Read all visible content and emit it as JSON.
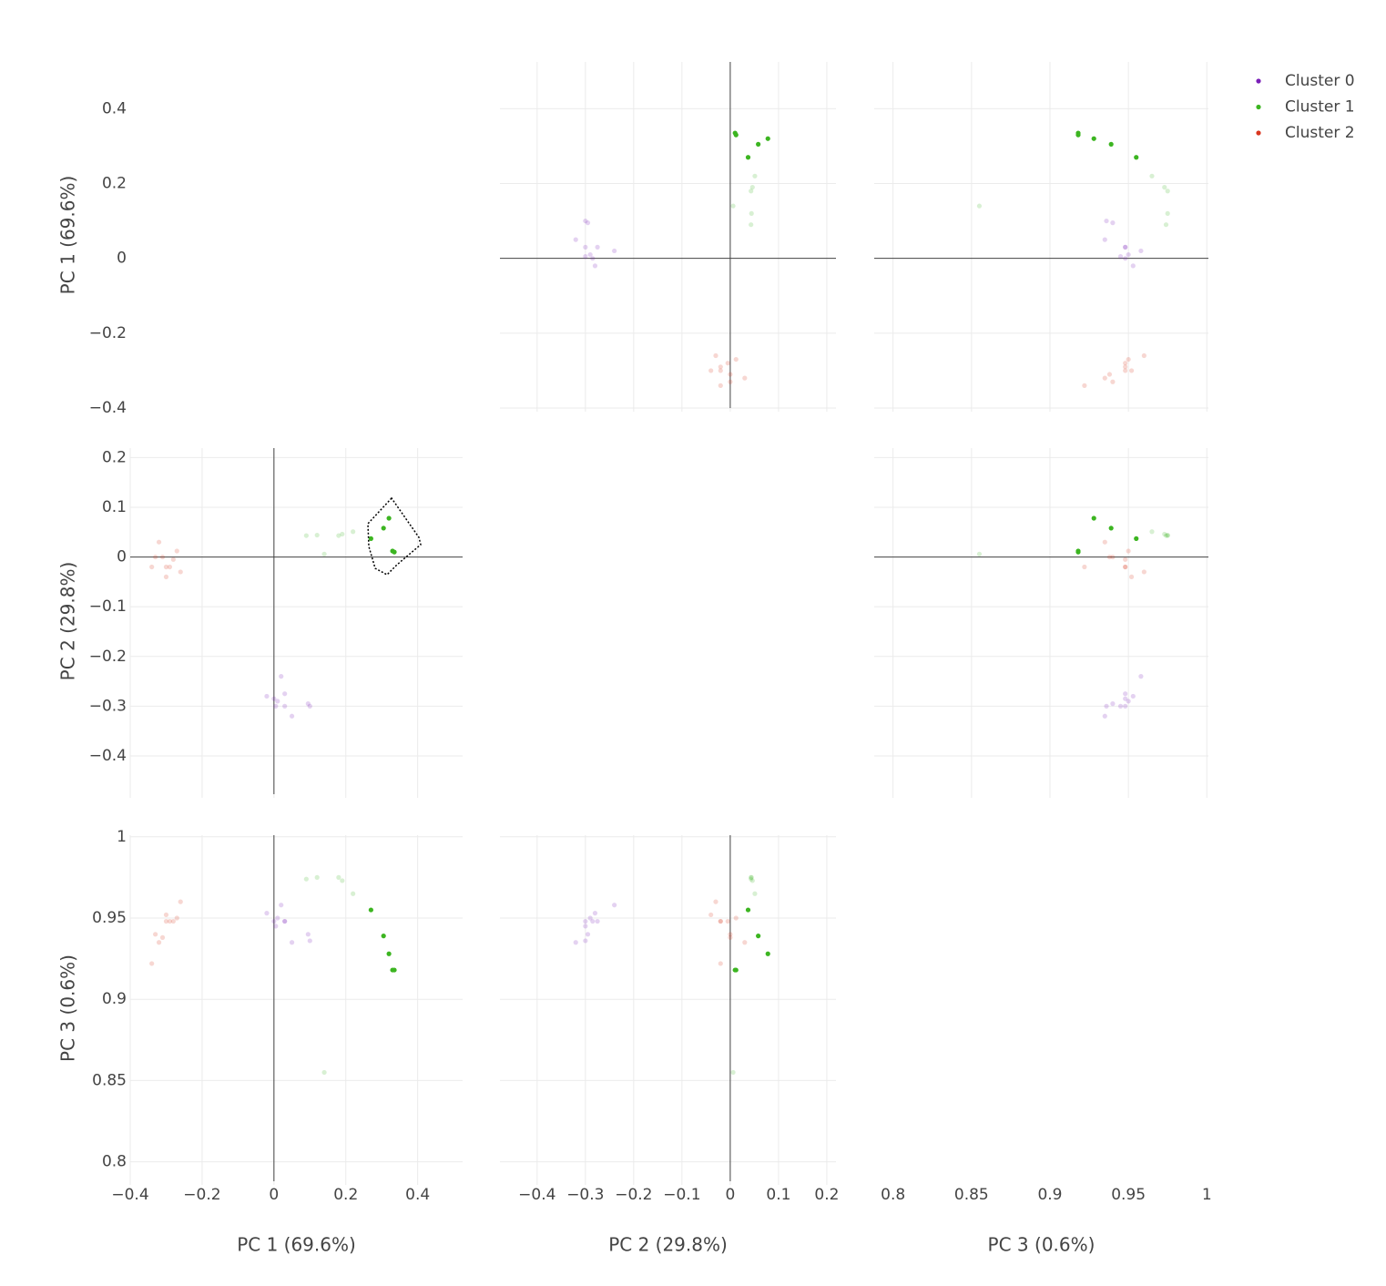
{
  "chart_data": {
    "type": "splom",
    "dimensions": [
      {
        "label": "PC 1 (69.6%)",
        "lim": [
          -0.4,
          0.525
        ],
        "ticks": [
          {
            "value": -0.4,
            "label": "−0.4"
          },
          {
            "value": -0.2,
            "label": "−0.2"
          },
          0,
          0.2,
          0.4
        ]
      },
      {
        "label": "PC 2 (29.8%)",
        "lim": [
          -0.477,
          0.219
        ],
        "ticks": [
          {
            "value": -0.4,
            "label": "−0.4"
          },
          {
            "value": -0.3,
            "label": "−0.3"
          },
          {
            "value": -0.2,
            "label": "−0.2"
          },
          {
            "value": -0.1,
            "label": "−0.1"
          },
          0,
          0.1,
          0.2
        ]
      },
      {
        "label": "PC 3 (0.6%)",
        "lim": [
          0.788,
          1.001
        ],
        "ticks": [
          0.8,
          0.85,
          0.9,
          0.95,
          1
        ]
      }
    ],
    "grid": true,
    "legend": "top-right",
    "series": [
      {
        "name": "Cluster 0",
        "color": "#7a1fb8",
        "pc1": [
          0.02,
          -0.02,
          0,
          0.01,
          0.03,
          0.005,
          0.03,
          0.05,
          0.095,
          0.1
        ],
        "pc2": [
          -0.24,
          -0.28,
          -0.285,
          -0.29,
          -0.275,
          -0.3,
          -0.3,
          -0.32,
          -0.295,
          -0.3
        ],
        "pc3": [
          0.958,
          0.953,
          0.948,
          0.95,
          0.948,
          0.945,
          0.948,
          0.935,
          0.94,
          0.936
        ],
        "selected": []
      },
      {
        "name": "Cluster 1",
        "color": "#3cb521",
        "pc1": [
          0.27,
          0.305,
          0.32,
          0.33,
          0.335,
          0.14,
          0.09,
          0.12,
          0.18,
          0.19,
          0.22
        ],
        "pc2": [
          0.037,
          0.058,
          0.078,
          0.012,
          0.01,
          0.006,
          0.043,
          0.044,
          0.043,
          0.046,
          0.051
        ],
        "pc3": [
          0.955,
          0.939,
          0.928,
          0.918,
          0.918,
          0.855,
          0.974,
          0.975,
          0.975,
          0.973,
          0.965
        ],
        "selected": [
          0,
          1,
          2,
          3,
          4
        ]
      },
      {
        "name": "Cluster 2",
        "color": "#d9361f",
        "pc1": [
          -0.32,
          -0.33,
          -0.31,
          -0.3,
          -0.29,
          -0.27,
          -0.3,
          -0.26,
          -0.34,
          -0.28
        ],
        "pc2": [
          0.03,
          0,
          0,
          -0.02,
          -0.02,
          0.012,
          -0.04,
          -0.03,
          -0.02,
          -0.005
        ],
        "pc3": [
          0.935,
          0.94,
          0.938,
          0.948,
          0.948,
          0.95,
          0.952,
          0.96,
          0.922,
          0.948
        ],
        "selected": []
      }
    ]
  }
}
